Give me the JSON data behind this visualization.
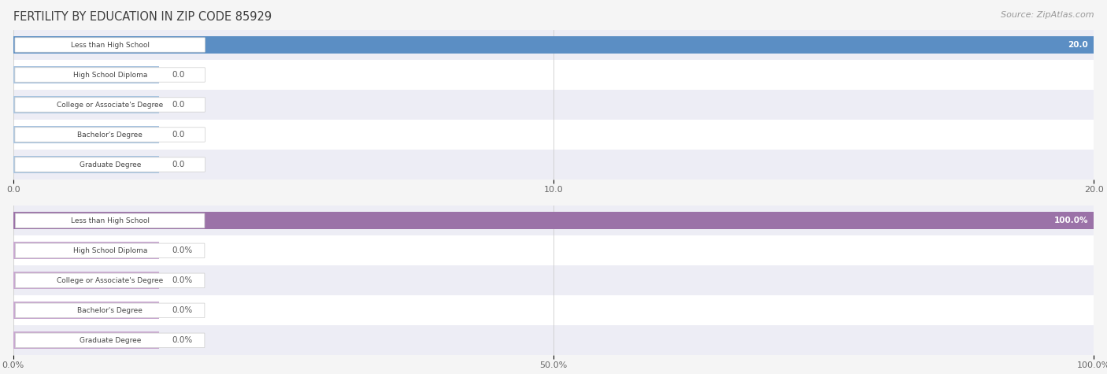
{
  "title": "FERTILITY BY EDUCATION IN ZIP CODE 85929",
  "source": "Source: ZipAtlas.com",
  "categories": [
    "Less than High School",
    "High School Diploma",
    "College or Associate's Degree",
    "Bachelor's Degree",
    "Graduate Degree"
  ],
  "chart1": {
    "values": [
      20.0,
      0.0,
      0.0,
      0.0,
      0.0
    ],
    "xlim": [
      0,
      20.0
    ],
    "xticks": [
      0.0,
      10.0,
      20.0
    ],
    "xtick_labels": [
      "0.0",
      "10.0",
      "20.0"
    ],
    "bar_color_full": "#5b8ec4",
    "bar_color_partial": "#a8c4e0",
    "label_color_inside": "#ffffff",
    "label_color_outside": "#555555",
    "value_labels": [
      "20.0",
      "0.0",
      "0.0",
      "0.0",
      "0.0"
    ]
  },
  "chart2": {
    "values": [
      100.0,
      0.0,
      0.0,
      0.0,
      0.0
    ],
    "xlim": [
      0,
      100.0
    ],
    "xticks": [
      0.0,
      50.0,
      100.0
    ],
    "xtick_labels": [
      "0.0%",
      "50.0%",
      "100.0%"
    ],
    "bar_color_full": "#9b72a8",
    "bar_color_partial": "#c8a8d0",
    "label_color_inside": "#ffffff",
    "label_color_outside": "#555555",
    "value_labels": [
      "100.0%",
      "0.0%",
      "0.0%",
      "0.0%",
      "0.0%"
    ]
  },
  "background_color": "#f5f5f5",
  "row_bg_light": "#ededf5",
  "row_bg_white": "#ffffff",
  "label_box_color": "#ffffff",
  "label_text_color": "#444444",
  "label_box_edge_color": "#cccccc",
  "title_color": "#404040",
  "source_color": "#999999",
  "figsize": [
    14.06,
    4.75
  ]
}
